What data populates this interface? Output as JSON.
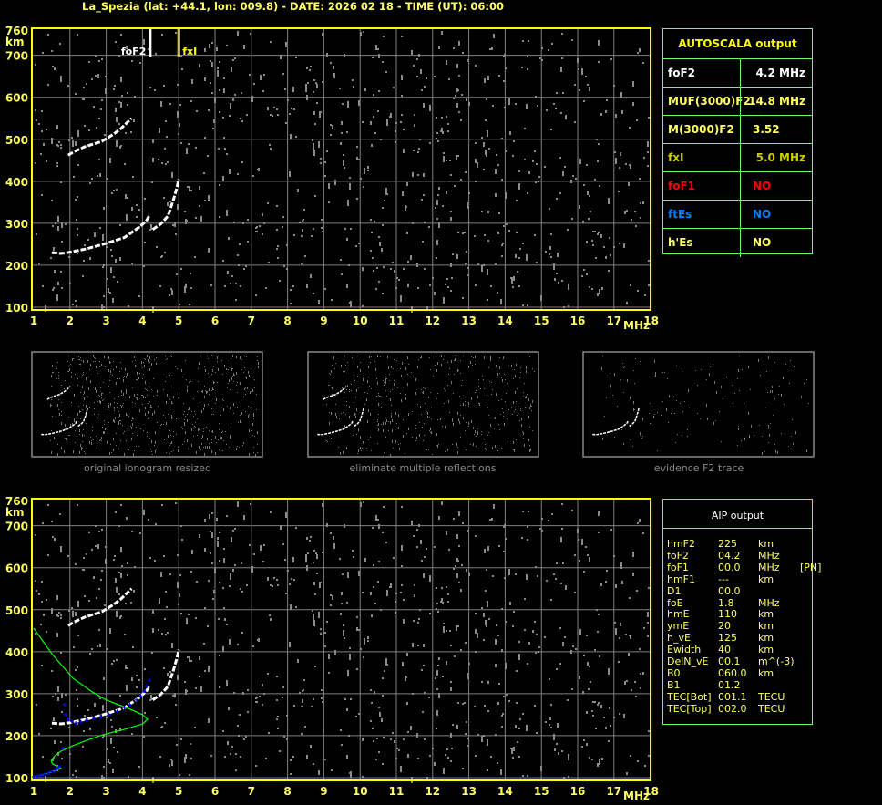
{
  "title": "La_Spezia (lat: +44.1, lon: 009.8) - DATE: 2026 02 18 - TIME (UT): 06:00",
  "colors": {
    "frame": "#ffff00",
    "grid": "#808080",
    "text": "#ffff66",
    "panel_border": "#66ff66",
    "foF1": "#ff0000",
    "ftEs": "#0080ff",
    "fxI": "#cccc00",
    "profile": "#00ff00",
    "fit": "#0000ff",
    "echo": "#ffffff",
    "noise": "#808080"
  },
  "chart_data": [
    {
      "type": "scatter",
      "xlabel": "MHz",
      "ylabel": "km",
      "xlim": [
        1,
        18
      ],
      "ylim": [
        100,
        760
      ],
      "x_ticks": [
        "1",
        "2",
        "3",
        "4",
        "5",
        "6",
        "7",
        "8",
        "9",
        "10",
        "11",
        "12",
        "13",
        "14",
        "15",
        "16",
        "17",
        "18"
      ],
      "y_ticks": [
        "760",
        "700",
        "600",
        "500",
        "400",
        "300",
        "200",
        "100"
      ],
      "grid": true,
      "markers": [
        {
          "label": "foF2",
          "x": 4.2,
          "color": "#ffffff"
        },
        {
          "label": "fxI",
          "x": 5.0,
          "color": "#ffff00"
        }
      ],
      "traces": {
        "F2_o": [
          [
            1.5,
            230
          ],
          [
            1.75,
            228
          ],
          [
            2.0,
            231
          ],
          [
            2.45,
            239
          ],
          [
            3.0,
            252
          ],
          [
            3.5,
            266
          ],
          [
            3.7,
            278
          ],
          [
            3.9,
            290
          ],
          [
            4.1,
            305
          ],
          [
            4.2,
            320
          ]
        ],
        "F2_x": [
          [
            4.28,
            285
          ],
          [
            4.5,
            298
          ],
          [
            4.7,
            317
          ],
          [
            4.85,
            355
          ],
          [
            4.95,
            385
          ],
          [
            5.0,
            405
          ]
        ],
        "F2_second_hop": [
          [
            1.95,
            462
          ],
          [
            2.1,
            470
          ],
          [
            2.4,
            482
          ],
          [
            2.88,
            495
          ],
          [
            3.2,
            512
          ],
          [
            3.4,
            525
          ],
          [
            3.7,
            550
          ]
        ]
      }
    },
    {
      "type": "scatter",
      "xlabel": "MHz",
      "ylabel": "km",
      "xlim": [
        1,
        18
      ],
      "ylim": [
        100,
        760
      ],
      "grid": true,
      "profile": [
        [
          1.0,
          456
        ],
        [
          1.5,
          395
        ],
        [
          2.08,
          337
        ],
        [
          2.6,
          305
        ],
        [
          3.0,
          285
        ],
        [
          3.66,
          263
        ],
        [
          4.0,
          250
        ],
        [
          4.14,
          239
        ],
        [
          4.0,
          228
        ],
        [
          3.5,
          215
        ],
        [
          2.9,
          202
        ],
        [
          2.5,
          190
        ],
        [
          2.08,
          176
        ],
        [
          1.75,
          163
        ],
        [
          1.58,
          152
        ],
        [
          1.48,
          140
        ],
        [
          1.52,
          133
        ],
        [
          1.75,
          122
        ],
        [
          1.6,
          117
        ],
        [
          1.4,
          111
        ],
        [
          1.2,
          106
        ],
        [
          1.0,
          102
        ]
      ],
      "fit_points": [
        [
          1.0,
          102
        ],
        [
          1.1,
          104
        ],
        [
          1.2,
          106
        ],
        [
          1.3,
          108
        ],
        [
          1.4,
          111
        ],
        [
          1.5,
          114
        ],
        [
          1.6,
          118
        ],
        [
          1.65,
          122
        ],
        [
          1.7,
          126
        ],
        [
          1.8,
          170
        ],
        [
          1.85,
          274
        ],
        [
          1.88,
          250
        ],
        [
          1.95,
          239
        ],
        [
          2.05,
          234
        ],
        [
          2.16,
          230
        ],
        [
          2.3,
          233
        ],
        [
          2.45,
          236
        ],
        [
          2.66,
          241
        ],
        [
          2.85,
          245
        ],
        [
          3.08,
          250
        ],
        [
          3.3,
          258
        ],
        [
          3.5,
          267
        ],
        [
          3.65,
          274
        ],
        [
          3.84,
          285
        ],
        [
          3.95,
          295
        ],
        [
          4.04,
          306
        ],
        [
          4.12,
          318
        ],
        [
          4.19,
          332
        ]
      ]
    }
  ],
  "thumbnails": [
    {
      "caption": "original ionogram resized"
    },
    {
      "caption": "eliminate multiple reflections"
    },
    {
      "caption": "evidence F2 trace"
    }
  ],
  "autoscala": {
    "header": "AUTOSCALA output",
    "rows": [
      {
        "key": "foF2",
        "value": "4.2 MHz",
        "color": "#ffffff"
      },
      {
        "key": "MUF(3000)F2",
        "value": "14.8 MHz",
        "color": "#ffff66"
      },
      {
        "key": "M(3000)F2",
        "value": "3.52",
        "color": "#ffff66"
      },
      {
        "key": "fxI",
        "value": "5.0 MHz",
        "color": "#cccc00"
      },
      {
        "key": "foF1",
        "value": "NO",
        "color": "#ff0000"
      },
      {
        "key": "ftEs",
        "value": "NO",
        "color": "#0080ff"
      },
      {
        "key": "h'Es",
        "value": "NO",
        "color": "#ffff66"
      }
    ]
  },
  "aip": {
    "header": "AIP output",
    "rows": [
      {
        "k": "hmF2",
        "v": "225",
        "u": "km",
        "x": ""
      },
      {
        "k": "foF2",
        "v": "04.2",
        "u": "MHz",
        "x": ""
      },
      {
        "k": "foF1",
        "v": "00.0",
        "u": "MHz",
        "x": "[PN]"
      },
      {
        "k": "hmF1",
        "v": "---",
        "u": "km",
        "x": ""
      },
      {
        "k": "D1",
        "v": "00.0",
        "u": "",
        "x": ""
      },
      {
        "k": "foE",
        "v": "1.8",
        "u": "MHz",
        "x": ""
      },
      {
        "k": "hmE",
        "v": "110",
        "u": "km",
        "x": ""
      },
      {
        "k": "ymE",
        "v": "20",
        "u": "km",
        "x": ""
      },
      {
        "k": "h_vE",
        "v": "125",
        "u": "km",
        "x": ""
      },
      {
        "k": "Ewidth",
        "v": "40",
        "u": "km",
        "x": ""
      },
      {
        "k": "DelN_vE",
        "v": "00.1",
        "u": "m^(-3)",
        "x": ""
      },
      {
        "k": "B0",
        "v": "060.0",
        "u": "km",
        "x": ""
      },
      {
        "k": "B1",
        "v": "01.2",
        "u": "",
        "x": ""
      },
      {
        "k": "TEC[Bot]",
        "v": "001.1",
        "u": "TECU",
        "x": ""
      },
      {
        "k": "TEC[Top]",
        "v": "002.0",
        "u": "TECU",
        "x": ""
      }
    ]
  }
}
